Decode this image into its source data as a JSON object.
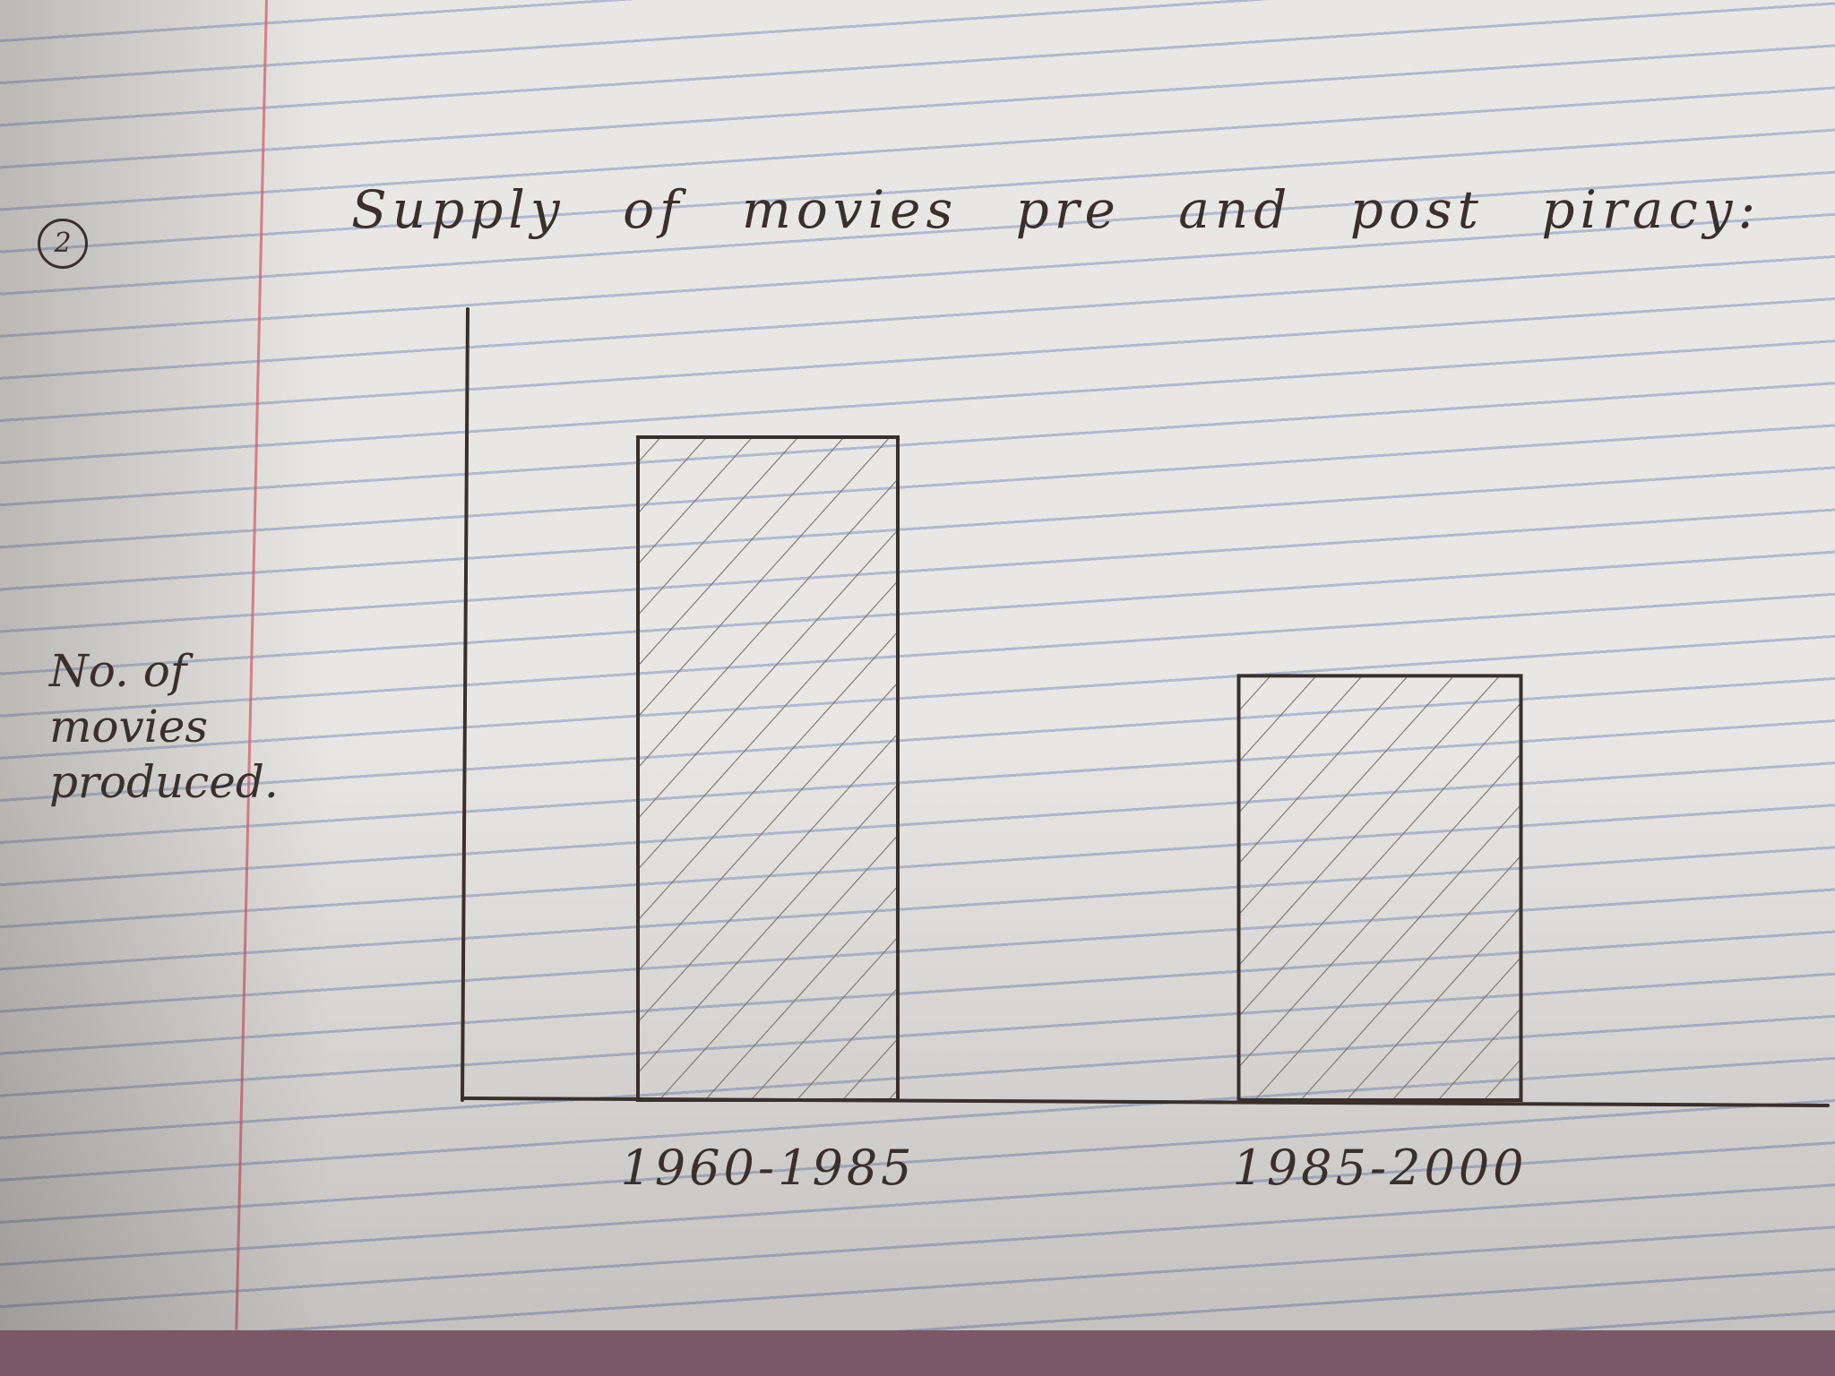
{
  "note": {
    "item_number": "2",
    "title": "Supply of movies pre and post piracy:"
  },
  "chart_data": {
    "type": "bar",
    "title": "Supply of movies pre and post piracy:",
    "xlabel": "",
    "ylabel": "No. of movies produced.",
    "categories": [
      "1960-1985",
      "1985-2000"
    ],
    "values": [
      100,
      64
    ],
    "ylim": [
      0,
      120
    ],
    "grid": false,
    "hatched": true,
    "colors": {
      "ink": "#3a302b",
      "hatch": "#7a716b"
    }
  }
}
